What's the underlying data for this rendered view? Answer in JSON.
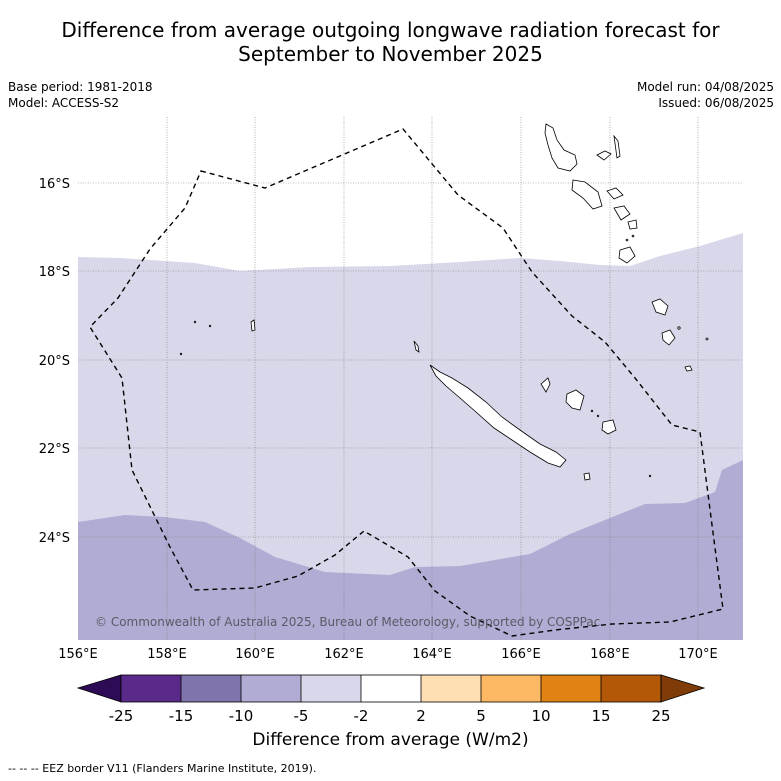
{
  "title_line1": "Difference from average outgoing longwave radiation forecast for",
  "title_line2": "September to November 2025",
  "base_period": "Base period: 1981-2018",
  "model": "Model: ACCESS-S2",
  "model_run": "Model run: 04/08/2025",
  "issued": "Issued: 06/08/2025",
  "copyright": "© Commonwealth of Australia 2025, Bureau of Meteorology, supported by COSPPac",
  "footnote": "--  --  -- EEZ border V11 (Flanders Marine Institute, 2019).",
  "colorbar": {
    "label": "Difference from average (W/m2)",
    "ticks": [
      "-25",
      "-15",
      "-10",
      "-5",
      "-2",
      "2",
      "5",
      "10",
      "15",
      "25"
    ],
    "colors": [
      "#2e0b55",
      "#5a2a8a",
      "#8074ad",
      "#b1acd3",
      "#d8d8ea",
      "#ffffff",
      "#fedfb3",
      "#fdb863",
      "#e08214",
      "#b35806",
      "#7f3b08"
    ]
  },
  "map": {
    "lon_range": [
      156,
      171
    ],
    "lat_range": [
      -26.3,
      -14.5
    ],
    "x_ticks": [
      "156°E",
      "158°E",
      "160°E",
      "162°E",
      "164°E",
      "166°E",
      "168°E",
      "170°E"
    ],
    "y_ticks": [
      "16°S",
      "18°S",
      "20°S",
      "22°S",
      "24°S"
    ],
    "grid": true,
    "bands": [
      {
        "class": "-5 to -2",
        "color": "#d8d8ea"
      },
      {
        "class": "-10 to -5",
        "color": "#b1acd3"
      }
    ]
  }
}
